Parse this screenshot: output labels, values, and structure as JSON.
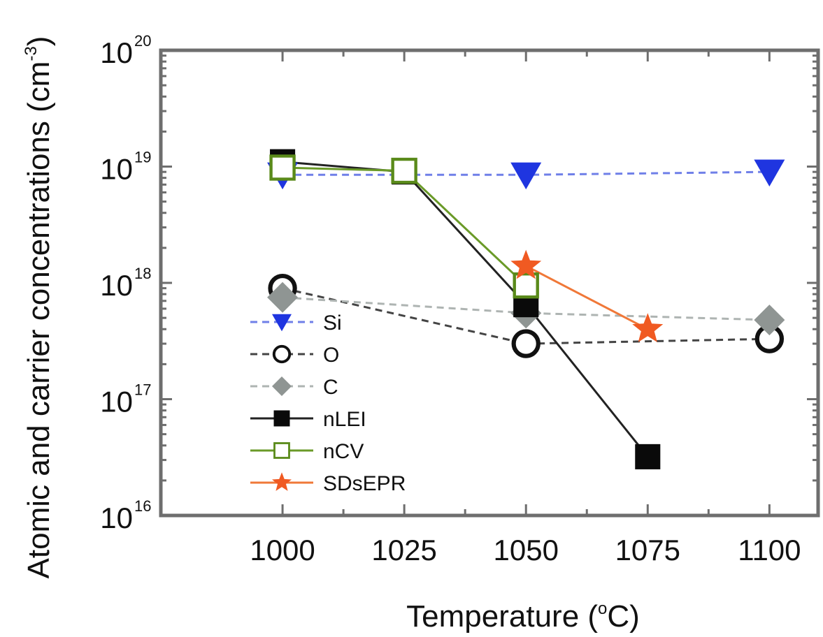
{
  "chart_data": {
    "type": "scatter",
    "xlabel": "Temperature (°C)",
    "xlabel_main": "Temperature (",
    "xlabel_deg": "o",
    "xlabel_tail": "C)",
    "ylabel": "Atomic and carrier concentrations (cm-3)",
    "ylabel_main": "Atomic and carrier concentrations (cm",
    "ylabel_exp": "-3",
    "ylabel_tail": ")",
    "y_scale": "log",
    "xlim": [
      975,
      1110
    ],
    "ylim": [
      1e+16,
      1e+20
    ],
    "x_ticks": [
      1000,
      1025,
      1050,
      1075,
      1100
    ],
    "x_tick_labels": [
      "1000",
      "1025",
      "1050",
      "1075",
      "1100"
    ],
    "x_minor_ticks": [
      1012.5,
      1037.5,
      1062.5,
      1087.5
    ],
    "y_ticks": [
      {
        "value": 1e+16,
        "base": "10",
        "exp": "16"
      },
      {
        "value": 1e+17,
        "base": "10",
        "exp": "17"
      },
      {
        "value": 1e+18,
        "base": "10",
        "exp": "18"
      },
      {
        "value": 1e+19,
        "base": "10",
        "exp": "19"
      },
      {
        "value": 1e+20,
        "base": "10",
        "exp": "20"
      }
    ],
    "legend_position": "lower-left",
    "series": [
      {
        "name": "Si",
        "marker": "triangle-down",
        "color": "#1f35e0",
        "line_style": "dashed",
        "line_color": "#6f7fe8",
        "x": [
          1000,
          1050,
          1100
        ],
        "y": [
          8.5e+18,
          8.5e+18,
          9e+18
        ]
      },
      {
        "name": "O",
        "marker": "circle-open",
        "color": "#111111",
        "line_style": "dashed",
        "line_color": "#444444",
        "x": [
          1000,
          1050,
          1100
        ],
        "y": [
          9e+17,
          3e+17,
          3.3e+17
        ]
      },
      {
        "name": "C",
        "marker": "diamond",
        "color": "#8f9593",
        "line_style": "dashed",
        "line_color": "#aeb4b2",
        "x": [
          1000,
          1050,
          1100
        ],
        "y": [
          7.5e+17,
          5.5e+17,
          4.8e+17
        ]
      },
      {
        "name": "nLEI",
        "marker": "square",
        "color": "#0a0a0a",
        "line_style": "solid",
        "line_color": "#222222",
        "x": [
          1000,
          1025,
          1050,
          1075
        ],
        "y": [
          1.1e+19,
          9e+18,
          6.5e+17,
          3.2e+16
        ]
      },
      {
        "name": "nCV",
        "marker": "square-open",
        "color": "#5a8a1a",
        "line_style": "solid",
        "line_color": "#6a9a28",
        "x": [
          1000,
          1025,
          1050
        ],
        "y": [
          9.8e+18,
          9.2e+18,
          9.5e+17
        ]
      },
      {
        "name": "SDsEPR",
        "marker": "star",
        "color": "#f05a22",
        "line_style": "solid",
        "line_color": "#f07838",
        "x": [
          1050,
          1075
        ],
        "y": [
          1.4e+18,
          4e+17
        ]
      }
    ]
  }
}
